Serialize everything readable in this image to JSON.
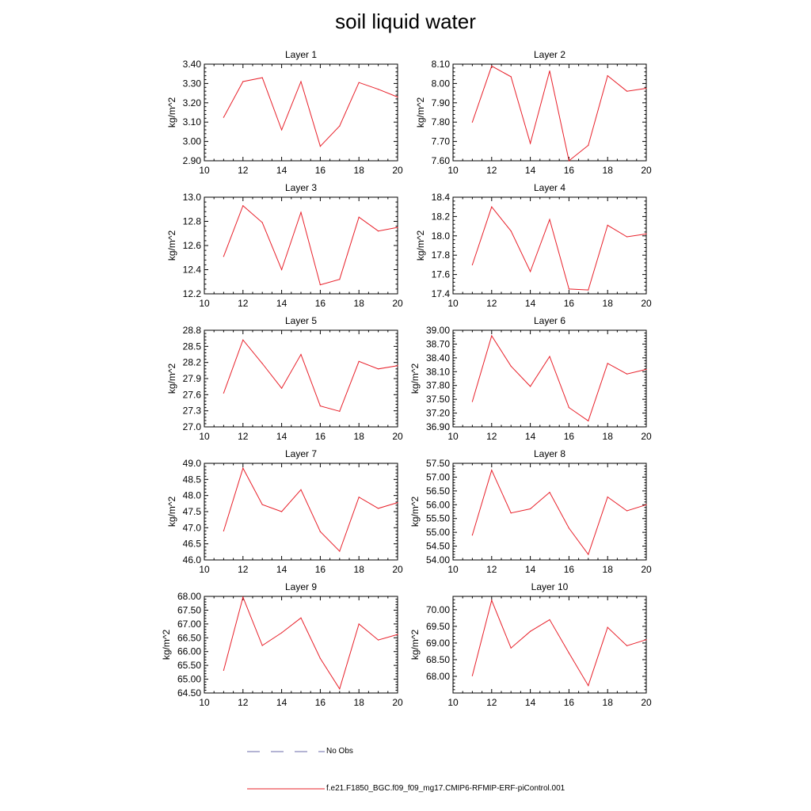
{
  "title": "soil liquid water",
  "colors": {
    "model": "#e8202a",
    "obs": "#6a6aa8",
    "axis": "#000000"
  },
  "legend": {
    "obs_label": "No Obs",
    "model_label": "f.e21.F1850_BGC.f09_f09_mg17.CMIP6-RFMIP-ERF-piControl.001"
  },
  "chart_data": [
    {
      "type": "line",
      "title": "Layer 1",
      "ylabel": "kg/m^2",
      "xlim": [
        10,
        20
      ],
      "xticks": [
        10,
        12,
        14,
        16,
        18,
        20
      ],
      "ylim": [
        2.9,
        3.4
      ],
      "yticks": [
        "2.90",
        "3.00",
        "3.10",
        "3.20",
        "3.30",
        "3.40"
      ],
      "x": [
        11,
        12,
        13,
        14,
        15,
        16,
        17,
        18,
        19,
        20
      ],
      "series": [
        {
          "name": "f.e21.F1850_BGC.f09_f09_mg17.CMIP6-RFMIP-ERF-piControl.001",
          "values": [
            3.125,
            3.31,
            3.33,
            3.06,
            3.31,
            2.975,
            3.08,
            3.305,
            3.27,
            3.23
          ]
        }
      ]
    },
    {
      "type": "line",
      "title": "Layer 2",
      "ylabel": "kg/m^2",
      "xlim": [
        10,
        20
      ],
      "xticks": [
        10,
        12,
        14,
        16,
        18,
        20
      ],
      "ylim": [
        7.6,
        8.1
      ],
      "yticks": [
        "7.60",
        "7.70",
        "7.80",
        "7.90",
        "8.00",
        "8.10"
      ],
      "x": [
        11,
        12,
        13,
        14,
        15,
        16,
        17,
        18,
        19,
        20
      ],
      "series": [
        {
          "name": "f.e21.F1850_BGC.f09_f09_mg17.CMIP6-RFMIP-ERF-piControl.001",
          "values": [
            7.8,
            8.09,
            8.035,
            7.69,
            8.065,
            7.6,
            7.68,
            8.04,
            7.96,
            7.975
          ]
        }
      ]
    },
    {
      "type": "line",
      "title": "Layer 3",
      "ylabel": "kg/m^2",
      "xlim": [
        10,
        20
      ],
      "xticks": [
        10,
        12,
        14,
        16,
        18,
        20
      ],
      "ylim": [
        12.2,
        13.0
      ],
      "yticks": [
        "12.2",
        "12.4",
        "12.6",
        "12.8",
        "13.0"
      ],
      "x": [
        11,
        12,
        13,
        14,
        15,
        16,
        17,
        18,
        19,
        20
      ],
      "series": [
        {
          "name": "f.e21.F1850_BGC.f09_f09_mg17.CMIP6-RFMIP-ERF-piControl.001",
          "values": [
            12.51,
            12.93,
            12.79,
            12.4,
            12.875,
            12.275,
            12.32,
            12.835,
            12.72,
            12.75
          ]
        }
      ]
    },
    {
      "type": "line",
      "title": "Layer 4",
      "ylabel": "kg/m^2",
      "xlim": [
        10,
        20
      ],
      "xticks": [
        10,
        12,
        14,
        16,
        18,
        20
      ],
      "ylim": [
        17.4,
        18.4
      ],
      "yticks": [
        "17.4",
        "17.6",
        "17.8",
        "18.0",
        "18.2",
        "18.4"
      ],
      "x": [
        11,
        12,
        13,
        14,
        15,
        16,
        17,
        18,
        19,
        20
      ],
      "series": [
        {
          "name": "f.e21.F1850_BGC.f09_f09_mg17.CMIP6-RFMIP-ERF-piControl.001",
          "values": [
            17.7,
            18.3,
            18.05,
            17.63,
            18.17,
            17.45,
            17.44,
            18.11,
            17.99,
            18.02
          ]
        }
      ]
    },
    {
      "type": "line",
      "title": "Layer 5",
      "ylabel": "kg/m^2",
      "xlim": [
        10,
        20
      ],
      "xticks": [
        10,
        12,
        14,
        16,
        18,
        20
      ],
      "ylim": [
        27.0,
        28.8
      ],
      "yticks": [
        "27.0",
        "27.3",
        "27.6",
        "27.9",
        "28.2",
        "28.5",
        "28.8"
      ],
      "x": [
        11,
        12,
        13,
        14,
        15,
        16,
        17,
        18,
        19,
        20
      ],
      "series": [
        {
          "name": "f.e21.F1850_BGC.f09_f09_mg17.CMIP6-RFMIP-ERF-piControl.001",
          "values": [
            27.63,
            28.62,
            28.18,
            27.72,
            28.35,
            27.39,
            27.29,
            28.22,
            28.08,
            28.14
          ]
        }
      ]
    },
    {
      "type": "line",
      "title": "Layer 6",
      "ylabel": "kg/m^2",
      "xlim": [
        10,
        20
      ],
      "xticks": [
        10,
        12,
        14,
        16,
        18,
        20
      ],
      "ylim": [
        36.9,
        39.0
      ],
      "yticks": [
        "36.90",
        "37.20",
        "37.50",
        "37.80",
        "38.10",
        "38.40",
        "38.70",
        "39.00"
      ],
      "x": [
        11,
        12,
        13,
        14,
        15,
        16,
        17,
        18,
        19,
        20
      ],
      "series": [
        {
          "name": "f.e21.F1850_BGC.f09_f09_mg17.CMIP6-RFMIP-ERF-piControl.001",
          "values": [
            37.45,
            38.88,
            38.22,
            37.78,
            38.43,
            37.32,
            37.03,
            38.28,
            38.05,
            38.15
          ]
        }
      ]
    },
    {
      "type": "line",
      "title": "Layer 7",
      "ylabel": "kg/m^2",
      "xlim": [
        10,
        20
      ],
      "xticks": [
        10,
        12,
        14,
        16,
        18,
        20
      ],
      "ylim": [
        46.0,
        49.0
      ],
      "yticks": [
        "46.0",
        "46.5",
        "47.0",
        "47.5",
        "48.0",
        "48.5",
        "49.0"
      ],
      "x": [
        11,
        12,
        13,
        14,
        15,
        16,
        17,
        18,
        19,
        20
      ],
      "series": [
        {
          "name": "f.e21.F1850_BGC.f09_f09_mg17.CMIP6-RFMIP-ERF-piControl.001",
          "values": [
            46.9,
            48.85,
            47.72,
            47.5,
            48.18,
            46.88,
            46.27,
            47.95,
            47.6,
            47.78
          ]
        }
      ]
    },
    {
      "type": "line",
      "title": "Layer 8",
      "ylabel": "kg/m^2",
      "xlim": [
        10,
        20
      ],
      "xticks": [
        10,
        12,
        14,
        16,
        18,
        20
      ],
      "ylim": [
        54.0,
        57.5
      ],
      "yticks": [
        "54.00",
        "54.50",
        "55.00",
        "55.50",
        "56.00",
        "56.50",
        "57.00",
        "57.50"
      ],
      "x": [
        11,
        12,
        13,
        14,
        15,
        16,
        17,
        18,
        19,
        20
      ],
      "series": [
        {
          "name": "f.e21.F1850_BGC.f09_f09_mg17.CMIP6-RFMIP-ERF-piControl.001",
          "values": [
            54.9,
            57.25,
            55.7,
            55.85,
            56.45,
            55.15,
            54.2,
            56.28,
            55.78,
            56.0
          ]
        }
      ]
    },
    {
      "type": "line",
      "title": "Layer 9",
      "ylabel": "kg/m^2",
      "xlim": [
        10,
        20
      ],
      "xticks": [
        10,
        12,
        14,
        16,
        18,
        20
      ],
      "ylim": [
        64.5,
        68.0
      ],
      "yticks": [
        "64.50",
        "65.00",
        "65.50",
        "66.00",
        "66.50",
        "67.00",
        "67.50",
        "68.00"
      ],
      "x": [
        11,
        12,
        13,
        14,
        15,
        16,
        17,
        18,
        19,
        20
      ],
      "series": [
        {
          "name": "f.e21.F1850_BGC.f09_f09_mg17.CMIP6-RFMIP-ERF-piControl.001",
          "values": [
            65.32,
            67.97,
            66.22,
            66.68,
            67.22,
            65.75,
            64.65,
            67.0,
            66.42,
            66.62
          ]
        }
      ]
    },
    {
      "type": "line",
      "title": "Layer 10",
      "ylabel": "kg/m^2",
      "xlim": [
        10,
        20
      ],
      "xticks": [
        10,
        12,
        14,
        16,
        18,
        20
      ],
      "ylim": [
        67.5,
        70.4
      ],
      "yticks": [
        "68.00",
        "68.50",
        "69.00",
        "69.50",
        "70.00"
      ],
      "x": [
        11,
        12,
        13,
        14,
        15,
        16,
        17,
        18,
        19,
        20
      ],
      "series": [
        {
          "name": "f.e21.F1850_BGC.f09_f09_mg17.CMIP6-RFMIP-ERF-piControl.001",
          "values": [
            68.02,
            70.28,
            68.85,
            69.35,
            69.7,
            68.7,
            67.72,
            69.47,
            68.92,
            69.1
          ]
        }
      ]
    }
  ]
}
